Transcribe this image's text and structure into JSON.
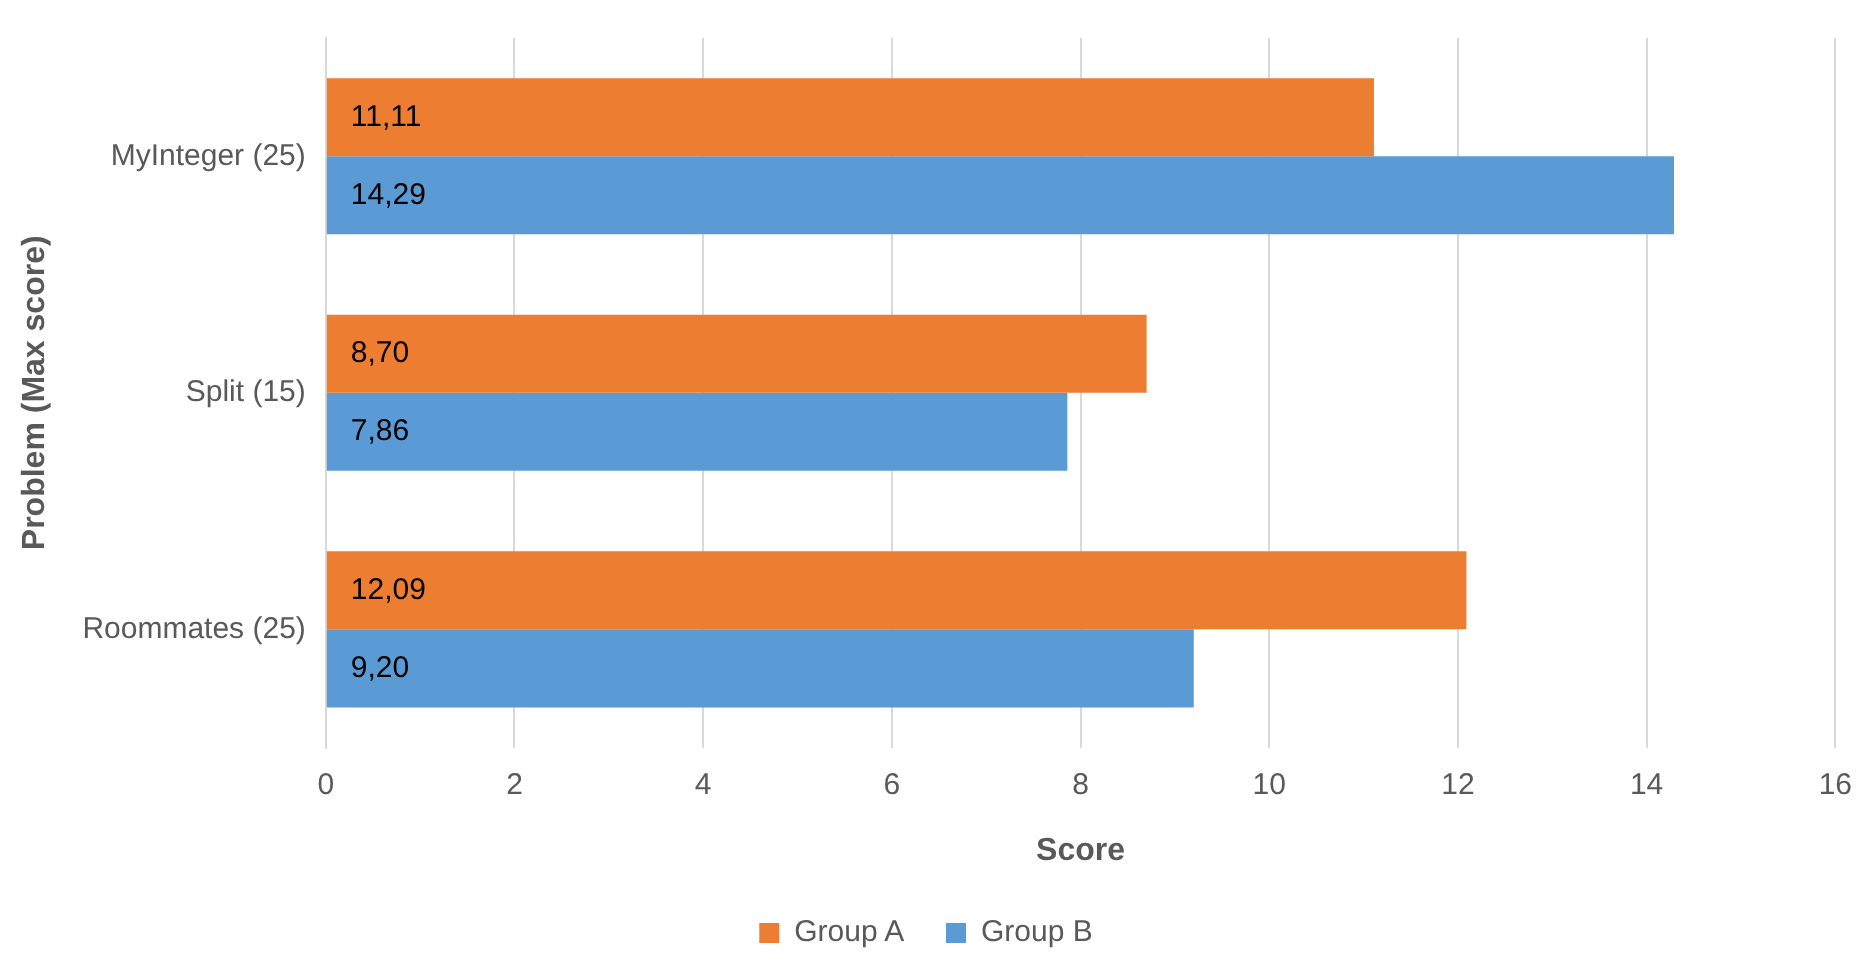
{
  "chart_data": {
    "type": "bar",
    "orientation": "horizontal",
    "xlabel": "Score",
    "ylabel": "Problem (Max score)",
    "categories": [
      "MyInteger (25)",
      "Split (15)",
      "Roommates (25)"
    ],
    "series": [
      {
        "name": "Group A",
        "color": "#ed7d31",
        "values": [
          11.11,
          8.7,
          12.09
        ],
        "value_labels": [
          "11,11",
          "8,70",
          "12,09"
        ]
      },
      {
        "name": "Group B",
        "color": "#5b9bd5",
        "values": [
          14.29,
          7.86,
          9.2
        ],
        "value_labels": [
          "14,29",
          "7,86",
          "9,20"
        ]
      }
    ],
    "xlim": [
      0,
      16
    ],
    "xticks": [
      0,
      2,
      4,
      6,
      8,
      10,
      12,
      14,
      16
    ],
    "grid": "x",
    "legend": "bottom"
  }
}
